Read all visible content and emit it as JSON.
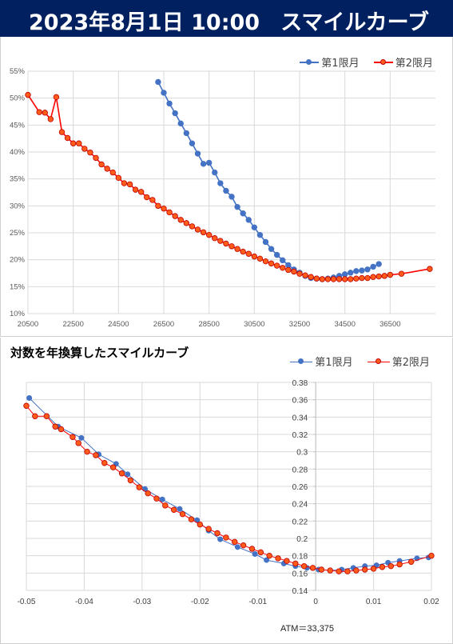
{
  "header": {
    "date": "2023年8月1日 10:00",
    "title": "スマイルカーブ"
  },
  "colors": {
    "header_bg": "#002060",
    "series1": "#4472C4",
    "series2": "#FF0000",
    "series2_marker_fill": "#FF5B1A"
  },
  "chart_data": [
    {
      "type": "line",
      "title": "",
      "xlabel": "",
      "ylabel": "",
      "xlim": [
        20500,
        38500
      ],
      "ylim": [
        10,
        55
      ],
      "x_ticks": [
        "20500",
        "22500",
        "24500",
        "26500",
        "28500",
        "30500",
        "32500",
        "34500",
        "36500"
      ],
      "y_ticks": [
        "10%",
        "15%",
        "20%",
        "25%",
        "30%",
        "35%",
        "40%",
        "45%",
        "50%",
        "55%"
      ],
      "legend": "top-right",
      "grid": true,
      "series": [
        {
          "name": "第1限月",
          "x": [
            26250,
            26500,
            26750,
            27000,
            27250,
            27500,
            27750,
            28000,
            28250,
            28500,
            28750,
            29000,
            29250,
            29500,
            29750,
            30000,
            30250,
            30500,
            30750,
            31000,
            31250,
            31500,
            31750,
            32000,
            32250,
            32500,
            32750,
            33000,
            33250,
            33500,
            33750,
            34000,
            34250,
            34500,
            34750,
            35000,
            35250,
            35500,
            35750,
            36000
          ],
          "y": [
            53.0,
            51.0,
            49.0,
            47.2,
            45.3,
            43.5,
            41.6,
            39.7,
            37.8,
            38.0,
            36.2,
            34.2,
            32.8,
            31.7,
            29.8,
            28.6,
            27.4,
            26.0,
            24.6,
            23.3,
            22.0,
            20.9,
            19.9,
            19.0,
            18.2,
            17.6,
            17.0,
            16.6,
            16.5,
            16.4,
            16.5,
            16.7,
            17.0,
            17.3,
            17.6,
            17.9,
            18.0,
            18.2,
            18.7,
            19.2
          ]
        },
        {
          "name": "第2限月",
          "x": [
            20500,
            21000,
            21250,
            21500,
            21750,
            22000,
            22250,
            22500,
            22750,
            23000,
            23250,
            23500,
            23750,
            24000,
            24250,
            24500,
            24750,
            25000,
            25250,
            25500,
            25750,
            26000,
            26250,
            26500,
            26750,
            27000,
            27250,
            27500,
            27750,
            28000,
            28250,
            28500,
            28750,
            29000,
            29250,
            29500,
            29750,
            30000,
            30250,
            30500,
            30750,
            31000,
            31250,
            31500,
            31750,
            32000,
            32250,
            32500,
            32750,
            33000,
            33250,
            33500,
            33750,
            34000,
            34250,
            34500,
            34750,
            35000,
            35250,
            35500,
            35750,
            36000,
            36250,
            36500,
            37000,
            38250
          ],
          "y": [
            50.6,
            47.4,
            47.3,
            46.1,
            50.2,
            43.7,
            42.6,
            41.6,
            41.6,
            40.6,
            39.9,
            38.9,
            37.7,
            36.9,
            36.2,
            35.2,
            34.2,
            34.0,
            33.0,
            32.6,
            31.6,
            31.1,
            30.0,
            29.5,
            28.8,
            28.1,
            27.4,
            26.8,
            26.2,
            25.6,
            25.1,
            24.6,
            24.0,
            23.5,
            23.0,
            22.5,
            22.0,
            21.5,
            21.1,
            20.6,
            20.2,
            19.7,
            19.3,
            18.9,
            18.5,
            18.1,
            17.8,
            17.4,
            17.1,
            16.8,
            16.5,
            16.4,
            16.4,
            16.4,
            16.4,
            16.4,
            16.4,
            16.5,
            16.6,
            16.6,
            16.8,
            16.9,
            17.0,
            17.2,
            17.4,
            18.3
          ]
        }
      ]
    },
    {
      "type": "scatter",
      "title": "対数を年換算したスマイルカーブ",
      "xlabel": "",
      "ylabel": "",
      "xlim": [
        -0.05,
        0.02
      ],
      "ylim": [
        0.14,
        0.38
      ],
      "x_ticks": [
        "-0.05",
        "-0.04",
        "-0.03",
        "-0.02",
        "-0.01",
        "0",
        "0.01",
        "0.02"
      ],
      "y_ticks": [
        "0.14",
        "0.16",
        "0.18",
        "0.2",
        "0.22",
        "0.24",
        "0.26",
        "0.28",
        "0.3",
        "0.32",
        "0.34",
        "0.36",
        "0.38"
      ],
      "legend": "top-right",
      "grid": true,
      "annotation": "ATM＝33,375",
      "series": [
        {
          "name": "第1限月",
          "x": [
            -0.0495,
            -0.0445,
            -0.0405,
            -0.0375,
            -0.0345,
            -0.0325,
            -0.0295,
            -0.0265,
            -0.0235,
            -0.0205,
            -0.0185,
            -0.0165,
            -0.0135,
            -0.0105,
            -0.0085,
            -0.0055,
            -0.0035,
            -0.0015,
            0.0005,
            0.0025,
            0.0045,
            0.0065,
            0.0085,
            0.0105,
            0.0125,
            0.0145,
            0.0175,
            0.0195
          ],
          "y": [
            0.362,
            0.329,
            0.316,
            0.297,
            0.286,
            0.274,
            0.257,
            0.245,
            0.234,
            0.221,
            0.209,
            0.199,
            0.19,
            0.182,
            0.175,
            0.171,
            0.168,
            0.166,
            0.164,
            0.163,
            0.164,
            0.166,
            0.168,
            0.169,
            0.172,
            0.174,
            0.177,
            0.178
          ]
        },
        {
          "name": "第2限月",
          "x": [
            -0.05,
            -0.0485,
            -0.0465,
            -0.045,
            -0.044,
            -0.042,
            -0.041,
            -0.0395,
            -0.038,
            -0.0365,
            -0.035,
            -0.0335,
            -0.032,
            -0.0305,
            -0.029,
            -0.0275,
            -0.026,
            -0.0245,
            -0.023,
            -0.0215,
            -0.02,
            -0.0185,
            -0.017,
            -0.0155,
            -0.014,
            -0.0125,
            -0.011,
            -0.0095,
            -0.008,
            -0.0065,
            -0.005,
            -0.0035,
            -0.002,
            -0.0005,
            0.001,
            0.0025,
            0.004,
            0.0055,
            0.007,
            0.0085,
            0.01,
            0.0115,
            0.013,
            0.0145,
            0.0165,
            0.02
          ],
          "y": [
            0.353,
            0.341,
            0.341,
            0.329,
            0.326,
            0.317,
            0.31,
            0.3,
            0.296,
            0.287,
            0.282,
            0.275,
            0.267,
            0.259,
            0.252,
            0.246,
            0.238,
            0.233,
            0.228,
            0.222,
            0.216,
            0.211,
            0.206,
            0.201,
            0.196,
            0.192,
            0.188,
            0.184,
            0.18,
            0.177,
            0.174,
            0.171,
            0.168,
            0.166,
            0.164,
            0.163,
            0.162,
            0.162,
            0.163,
            0.164,
            0.165,
            0.167,
            0.168,
            0.17,
            0.173,
            0.18
          ]
        }
      ]
    }
  ]
}
